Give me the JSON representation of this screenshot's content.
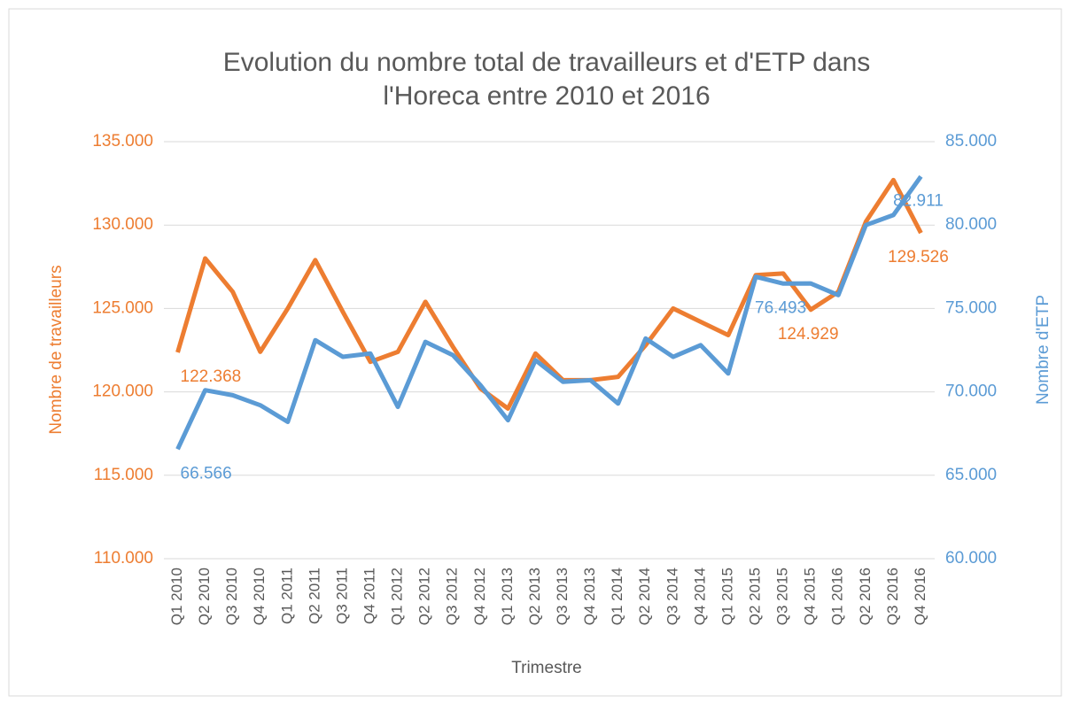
{
  "chart_data": {
    "type": "line",
    "title": [
      "Evolution du nombre total de travailleurs et d'ETP dans",
      "l'Horeca entre 2010 et 2016"
    ],
    "xlabel": "Trimestre",
    "ylabel": "Nombre de travailleurs",
    "y2label": "Nombre d'ETP",
    "categories": [
      "Q1 2010",
      "Q2 2010",
      "Q3 2010",
      "Q4 2010",
      "Q1 2011",
      "Q2 2011",
      "Q3 2011",
      "Q4 2011",
      "Q1 2012",
      "Q2 2012",
      "Q3 2012",
      "Q4 2012",
      "Q1 2013",
      "Q2 2013",
      "Q3 2013",
      "Q4 2013",
      "Q1 2014",
      "Q2 2014",
      "Q3 2014",
      "Q4 2014",
      "Q1 2015",
      "Q2 2015",
      "Q3 2015",
      "Q4 2015",
      "Q1 2016",
      "Q2 2016",
      "Q3 2016",
      "Q4 2016"
    ],
    "series": [
      {
        "name": "Nombre de travailleurs",
        "color": "#ed7d31",
        "axis": "y",
        "values": [
          122368,
          128000,
          126000,
          122400,
          125000,
          127900,
          124800,
          121800,
          122400,
          125400,
          122700,
          120200,
          119000,
          122300,
          120700,
          120700,
          120900,
          122800,
          125000,
          124200,
          123400,
          127000,
          127100,
          124929,
          126000,
          130200,
          132700,
          129526
        ],
        "value_labels": [
          "122.368",
          null,
          null,
          null,
          null,
          null,
          null,
          null,
          null,
          null,
          null,
          null,
          null,
          null,
          null,
          null,
          null,
          null,
          null,
          null,
          null,
          null,
          null,
          "124.929",
          null,
          null,
          null,
          "129.526"
        ]
      },
      {
        "name": "Nombre d'ETP",
        "color": "#5b9bd5",
        "axis": "y2",
        "values": [
          66566,
          70100,
          69800,
          69200,
          68200,
          73100,
          72100,
          72300,
          69100,
          73000,
          72200,
          70400,
          68300,
          71900,
          70600,
          70700,
          69300,
          73200,
          72100,
          72800,
          71100,
          76900,
          76493,
          76500,
          75800,
          80000,
          80600,
          82911
        ],
        "value_labels": [
          "66.566",
          null,
          null,
          null,
          null,
          null,
          null,
          null,
          null,
          null,
          null,
          null,
          null,
          null,
          null,
          null,
          null,
          null,
          null,
          null,
          null,
          null,
          "76.493",
          null,
          null,
          null,
          null,
          "82.911"
        ]
      }
    ],
    "ylim": [
      110000,
      135000
    ],
    "yticks": [
      {
        "value": 110000,
        "label": "110.000"
      },
      {
        "value": 115000,
        "label": "115.000"
      },
      {
        "value": 120000,
        "label": "120.000"
      },
      {
        "value": 125000,
        "label": "125.000"
      },
      {
        "value": 130000,
        "label": "130.000"
      },
      {
        "value": 135000,
        "label": "135.000"
      }
    ],
    "y2lim": [
      60000,
      85000
    ],
    "y2ticks": [
      {
        "value": 60000,
        "label": "60.000"
      },
      {
        "value": 65000,
        "label": "65.000"
      },
      {
        "value": 70000,
        "label": "70.000"
      },
      {
        "value": 75000,
        "label": "75.000"
      },
      {
        "value": 80000,
        "label": "80.000"
      },
      {
        "value": 85000,
        "label": "85.000"
      }
    ],
    "grid": true
  }
}
